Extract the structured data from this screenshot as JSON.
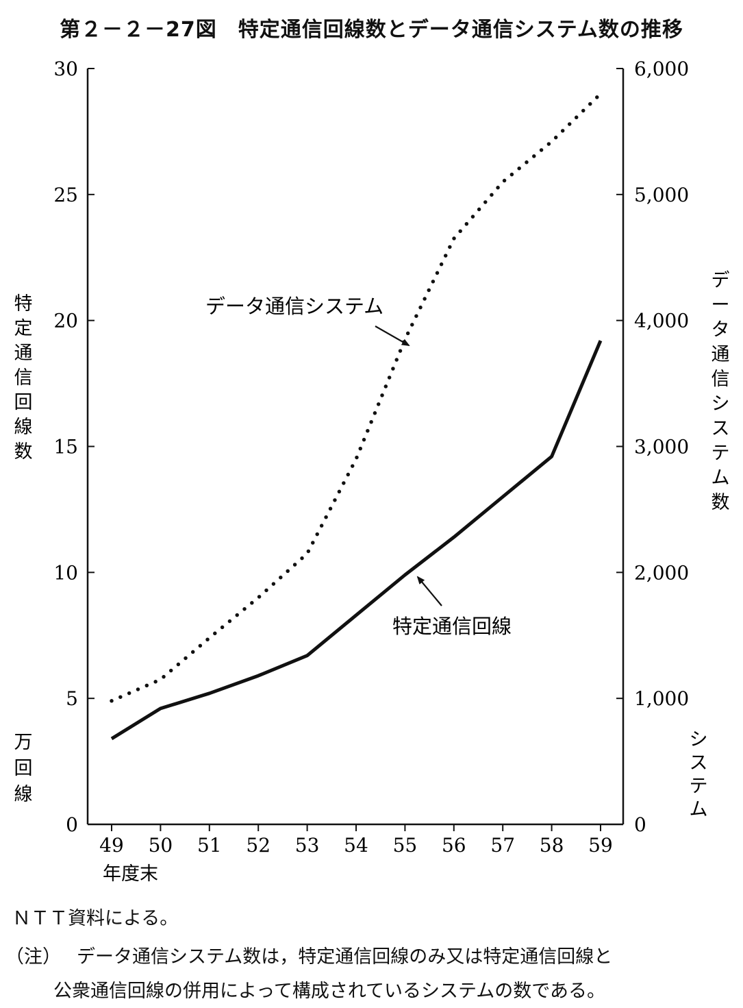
{
  "chart_data": {
    "type": "line",
    "title": "第２－２－27図　特定通信回線数とデータ通信システム数の推移",
    "x": [
      49,
      50,
      51,
      52,
      53,
      54,
      55,
      56,
      57,
      58,
      59
    ],
    "x_tick_labels": [
      "49",
      "50",
      "51",
      "52",
      "53",
      "54",
      "55",
      "56",
      "57",
      "58",
      "59"
    ],
    "xlabel": "年度末",
    "y_left": {
      "label": "特定通信回線数",
      "unit": "万回線",
      "ylim": [
        0,
        30
      ],
      "ticks": [
        0,
        5,
        10,
        15,
        20,
        25,
        30
      ],
      "tick_labels": [
        "0",
        "5",
        "10",
        "15",
        "20",
        "25",
        "30"
      ]
    },
    "y_right": {
      "label": "データ通信システム数",
      "unit": "システム",
      "ylim": [
        0,
        6000
      ],
      "ticks": [
        0,
        1000,
        2000,
        3000,
        4000,
        5000,
        6000
      ],
      "tick_labels": [
        "0",
        "1,000",
        "2,000",
        "3,000",
        "4,000",
        "5,000",
        "6,000"
      ]
    },
    "series": [
      {
        "name": "データ通信システム",
        "axis": "right",
        "style": "dotted",
        "values": [
          980,
          1150,
          1480,
          1800,
          2150,
          2900,
          3850,
          4650,
          5100,
          5420,
          5800
        ]
      },
      {
        "name": "特定通信回線",
        "axis": "left",
        "style": "solid",
        "values": [
          3.4,
          4.6,
          5.2,
          5.9,
          6.7,
          8.3,
          9.9,
          11.4,
          13.0,
          14.6,
          19.2
        ]
      }
    ],
    "grid": false,
    "legend": "inline labels with arrows"
  },
  "notes": {
    "source": "ＮＴＴ資料による。",
    "note_prefix": "（注）",
    "note_line1": "データ通信システム数は，特定通信回線のみ又は特定通信回線と",
    "note_line2": "公衆通信回線の併用によって構成されているシステムの数である。"
  }
}
